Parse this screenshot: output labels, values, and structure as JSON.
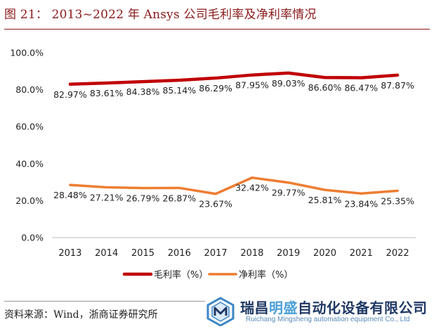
{
  "figure": {
    "title": "图 21：  2013~2022 年 Ansys 公司毛利率及净利率情况",
    "source": "资料来源：Wind，浙商证券研究所"
  },
  "watermark": {
    "company_cn_part1": "瑞昌",
    "company_cn_part2": "明盛",
    "company_cn_part3": "自动化设备有限公司",
    "company_en": "Ruichang Mingsheng automation equipment Co., Ltd"
  },
  "chart_data": {
    "type": "line",
    "title": "",
    "xlabel": "",
    "ylabel": "",
    "categories": [
      "2013",
      "2014",
      "2015",
      "2016",
      "2017",
      "2018",
      "2019",
      "2020",
      "2021",
      "2022"
    ],
    "ylim": [
      0,
      100
    ],
    "yticks": [
      "0.0%",
      "20.0%",
      "40.0%",
      "60.0%",
      "80.0%",
      "100.0%"
    ],
    "ytick_values": [
      0,
      20,
      40,
      60,
      80,
      100
    ],
    "grid": false,
    "legend_position": "bottom",
    "series": [
      {
        "name": "毛利率（%）",
        "color": "#c00000",
        "values": [
          82.97,
          83.61,
          84.38,
          85.14,
          86.29,
          87.95,
          89.03,
          86.6,
          86.47,
          87.87
        ],
        "labels": [
          "82.97%",
          "83.61%",
          "84.38%",
          "85.14%",
          "86.29%",
          "87.95%",
          "89.03%",
          "86.60%",
          "86.47%",
          "87.87%"
        ]
      },
      {
        "name": "净利率（%）",
        "color": "#ed7d31",
        "values": [
          28.48,
          27.21,
          26.79,
          26.87,
          23.67,
          32.42,
          29.77,
          25.81,
          23.84,
          25.35
        ],
        "labels": [
          "28.48%",
          "27.21%",
          "26.79%",
          "26.87%",
          "23.67%",
          "32.42%",
          "29.77%",
          "25.81%",
          "23.84%",
          "25.35%"
        ]
      }
    ]
  }
}
